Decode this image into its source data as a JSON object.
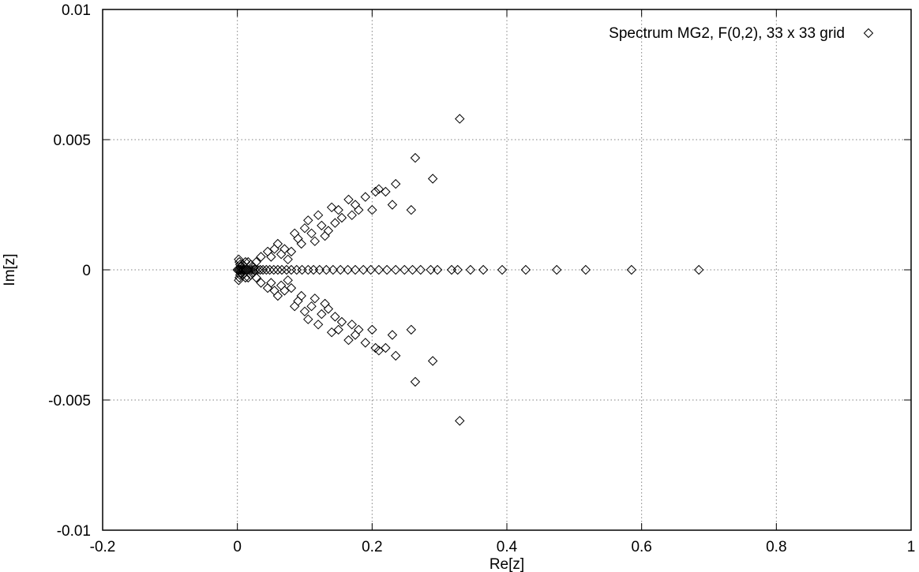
{
  "chart_data": {
    "type": "scatter",
    "xlabel": "Re[z]",
    "ylabel": "Im[z]",
    "xlim": [
      -0.2,
      1.0
    ],
    "ylim": [
      -0.01,
      0.01
    ],
    "xticks": [
      -0.2,
      0,
      0.2,
      0.4,
      0.6,
      0.8,
      1.0
    ],
    "yticks": [
      -0.01,
      -0.005,
      0,
      0.005,
      0.01
    ],
    "xtick_labels": [
      "-0.2",
      "0",
      "0.2",
      "0.4",
      "0.6",
      "0.8",
      "1"
    ],
    "ytick_labels": [
      "-0.01",
      "-0.005",
      "0",
      "0.005",
      "0.01"
    ],
    "grid": true,
    "grid_style": "dotted",
    "legend_position": "top-right",
    "marker": "diamond",
    "colors": {
      "marker": "#000000",
      "grid": "#808080",
      "axes": "#000000"
    },
    "series": [
      {
        "name": "Spectrum MG2, F(0,2), 33 x 33 grid",
        "real_axis": [
          0,
          0.002,
          0.004,
          0.006,
          0.008,
          0.01,
          0.012,
          0.014,
          0.017,
          0.02,
          0.023,
          0.026,
          0.03,
          0.034,
          0.038,
          0.043,
          0.048,
          0.054,
          0.06,
          0.066,
          0.073,
          0.08,
          0.088,
          0.096,
          0.105,
          0.113,
          0.122,
          0.132,
          0.142,
          0.153,
          0.164,
          0.175,
          0.187,
          0.198,
          0.21,
          0.222,
          0.235,
          0.248,
          0.26,
          0.272,
          0.287,
          0.297,
          0.318,
          0.327,
          0.346,
          0.365,
          0.393,
          0.428,
          0.474,
          0.517,
          0.585,
          0.685
        ],
        "conjugate_pairs": [
          [
            0.002,
            0.0004
          ],
          [
            0.003,
            0.0003
          ],
          [
            0.004,
            0.0002
          ],
          [
            0.005,
            0.0001
          ],
          [
            0.008,
            0.0002
          ],
          [
            0.012,
            0.0003
          ],
          [
            0.016,
            0.0003
          ],
          [
            0.02,
            0.0002
          ],
          [
            0.024,
            0.0001
          ],
          [
            0.028,
            0.0003
          ],
          [
            0.035,
            0.0005
          ],
          [
            0.045,
            0.0007
          ],
          [
            0.05,
            0.0005
          ],
          [
            0.055,
            0.0008
          ],
          [
            0.06,
            0.001
          ],
          [
            0.065,
            0.0006
          ],
          [
            0.07,
            0.0008
          ],
          [
            0.075,
            0.0004
          ],
          [
            0.08,
            0.0007
          ],
          [
            0.085,
            0.0014
          ],
          [
            0.09,
            0.0012
          ],
          [
            0.095,
            0.001
          ],
          [
            0.1,
            0.0016
          ],
          [
            0.105,
            0.0019
          ],
          [
            0.11,
            0.0014
          ],
          [
            0.115,
            0.0011
          ],
          [
            0.12,
            0.0021
          ],
          [
            0.125,
            0.0017
          ],
          [
            0.13,
            0.0013
          ],
          [
            0.135,
            0.0015
          ],
          [
            0.14,
            0.0024
          ],
          [
            0.145,
            0.0018
          ],
          [
            0.15,
            0.0023
          ],
          [
            0.155,
            0.002
          ],
          [
            0.165,
            0.0027
          ],
          [
            0.17,
            0.0021
          ],
          [
            0.175,
            0.0025
          ],
          [
            0.18,
            0.0023
          ],
          [
            0.19,
            0.0028
          ],
          [
            0.2,
            0.0023
          ],
          [
            0.205,
            0.003
          ],
          [
            0.21,
            0.0031
          ],
          [
            0.22,
            0.003
          ],
          [
            0.23,
            0.0025
          ],
          [
            0.235,
            0.0033
          ],
          [
            0.258,
            0.0023
          ],
          [
            0.264,
            0.0043
          ],
          [
            0.29,
            0.0035
          ],
          [
            0.33,
            0.0058
          ]
        ]
      }
    ]
  }
}
